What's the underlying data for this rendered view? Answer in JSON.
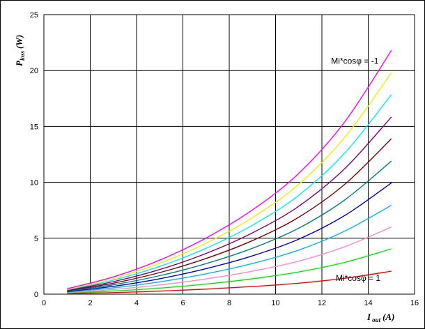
{
  "chart_data": {
    "type": "line",
    "title": "",
    "xlabel": {
      "main": "I",
      "sub": "out",
      "unit": "(A)"
    },
    "ylabel": {
      "main": "P",
      "sub": "loss",
      "unit": "(W)"
    },
    "xlim": [
      0,
      16
    ],
    "ylim": [
      0,
      25
    ],
    "x_ticks": [
      0,
      2,
      4,
      6,
      8,
      10,
      12,
      14,
      16
    ],
    "y_ticks": [
      0,
      5,
      10,
      15,
      20,
      25
    ],
    "grid": true,
    "x": [
      1,
      3,
      5,
      7,
      9,
      11,
      13,
      15
    ],
    "series": [
      {
        "color": "#ff0000",
        "values": [
          0.06,
          0.14,
          0.27,
          0.45,
          0.68,
          0.98,
          1.42,
          2.05
        ]
      },
      {
        "color": "#00ee00",
        "values": [
          0.1,
          0.28,
          0.54,
          0.9,
          1.37,
          1.98,
          2.85,
          4.05
        ]
      },
      {
        "color": "#ff88cc",
        "values": [
          0.15,
          0.42,
          0.82,
          1.36,
          2.05,
          2.95,
          4.25,
          6.0
        ]
      },
      {
        "color": "#00bbee",
        "values": [
          0.19,
          0.56,
          1.1,
          1.82,
          2.74,
          3.94,
          5.65,
          7.95
        ]
      },
      {
        "color": "#0000cc",
        "values": [
          0.23,
          0.7,
          1.38,
          2.28,
          3.42,
          4.92,
          7.05,
          9.95
        ]
      },
      {
        "color": "#008080",
        "values": [
          0.27,
          0.84,
          1.65,
          2.73,
          4.1,
          5.9,
          8.45,
          11.9
        ]
      },
      {
        "color": "#800000",
        "values": [
          0.31,
          0.98,
          1.93,
          3.19,
          4.79,
          6.88,
          9.85,
          13.9
        ]
      },
      {
        "color": "#800080",
        "values": [
          0.35,
          1.12,
          2.2,
          3.64,
          5.48,
          7.86,
          11.25,
          15.85
        ]
      },
      {
        "color": "#00eeee",
        "values": [
          0.39,
          1.26,
          2.48,
          4.1,
          6.16,
          8.84,
          12.65,
          17.85
        ]
      },
      {
        "color": "#eeee00",
        "values": [
          0.43,
          1.4,
          2.76,
          4.56,
          6.84,
          9.82,
          14.05,
          19.8
        ]
      },
      {
        "color": "#ff00ff",
        "values": [
          0.48,
          1.54,
          3.04,
          5.02,
          7.53,
          10.8,
          15.45,
          21.8
        ]
      }
    ],
    "annotations": [
      {
        "text": "Mi*cosφ = -1",
        "x": 12.4,
        "y": 20.6
      },
      {
        "text": "Mi*cosφ = 1",
        "x": 12.6,
        "y": 1.2
      }
    ]
  }
}
